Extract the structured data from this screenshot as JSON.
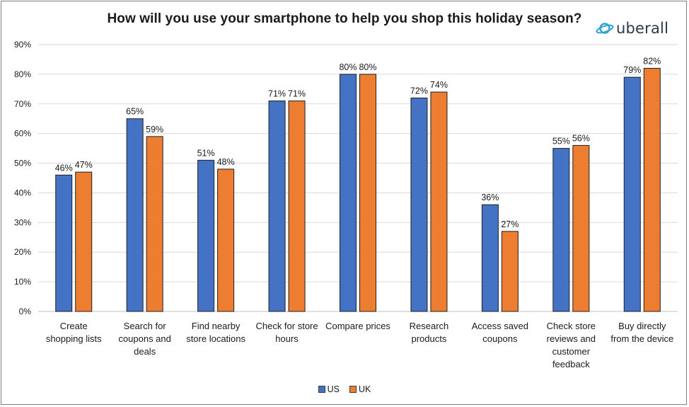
{
  "chart_data": {
    "type": "bar",
    "title": "How will you use your smartphone to help you shop this holiday season?",
    "categories": [
      [
        "Create",
        "shopping lists"
      ],
      [
        "Search for",
        "coupons and",
        "deals"
      ],
      [
        "Find nearby",
        "store locations"
      ],
      [
        "Check for store",
        "hours"
      ],
      [
        "Compare prices"
      ],
      [
        "Research",
        "products"
      ],
      [
        "Access saved",
        "coupons"
      ],
      [
        "Check store",
        "reviews and",
        "customer",
        "feedback"
      ],
      [
        "Buy directly",
        "from the device"
      ]
    ],
    "series": [
      {
        "name": "US",
        "color": "#4472c4",
        "values": [
          46,
          65,
          51,
          71,
          80,
          72,
          36,
          55,
          79
        ]
      },
      {
        "name": "UK",
        "color": "#ed7d31",
        "values": [
          47,
          59,
          48,
          71,
          80,
          74,
          27,
          56,
          82
        ]
      }
    ],
    "ylim": [
      0,
      90
    ],
    "yticks": [
      "0%",
      "10%",
      "20%",
      "30%",
      "40%",
      "50%",
      "60%",
      "70%",
      "80%",
      "90%"
    ],
    "value_suffix": "%",
    "grid": true,
    "legend_position": "bottom-center"
  },
  "brand": {
    "name": "uberall",
    "icon": "planet-icon",
    "color": "#2ea3d6"
  }
}
